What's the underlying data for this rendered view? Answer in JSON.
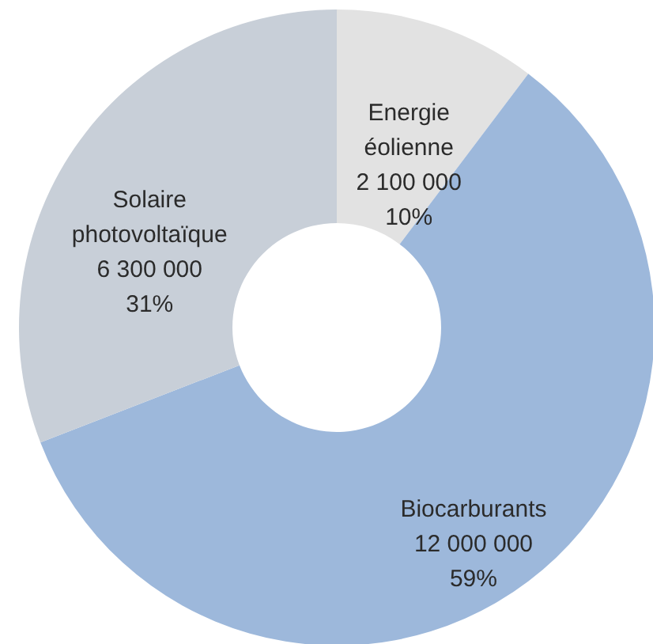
{
  "chart_data": {
    "type": "donut",
    "categories": [
      "Energie éolienne",
      "Biocarburants",
      "Solaire photovoltaïque"
    ],
    "values": [
      2100000,
      12000000,
      6300000
    ],
    "colors": [
      "#e2e2e2",
      "#9db8db",
      "#c8cfd8"
    ],
    "value_labels": [
      "2 100 000\n10%",
      "12 000 000\n59%",
      "6 300 000\n31%"
    ]
  }
}
